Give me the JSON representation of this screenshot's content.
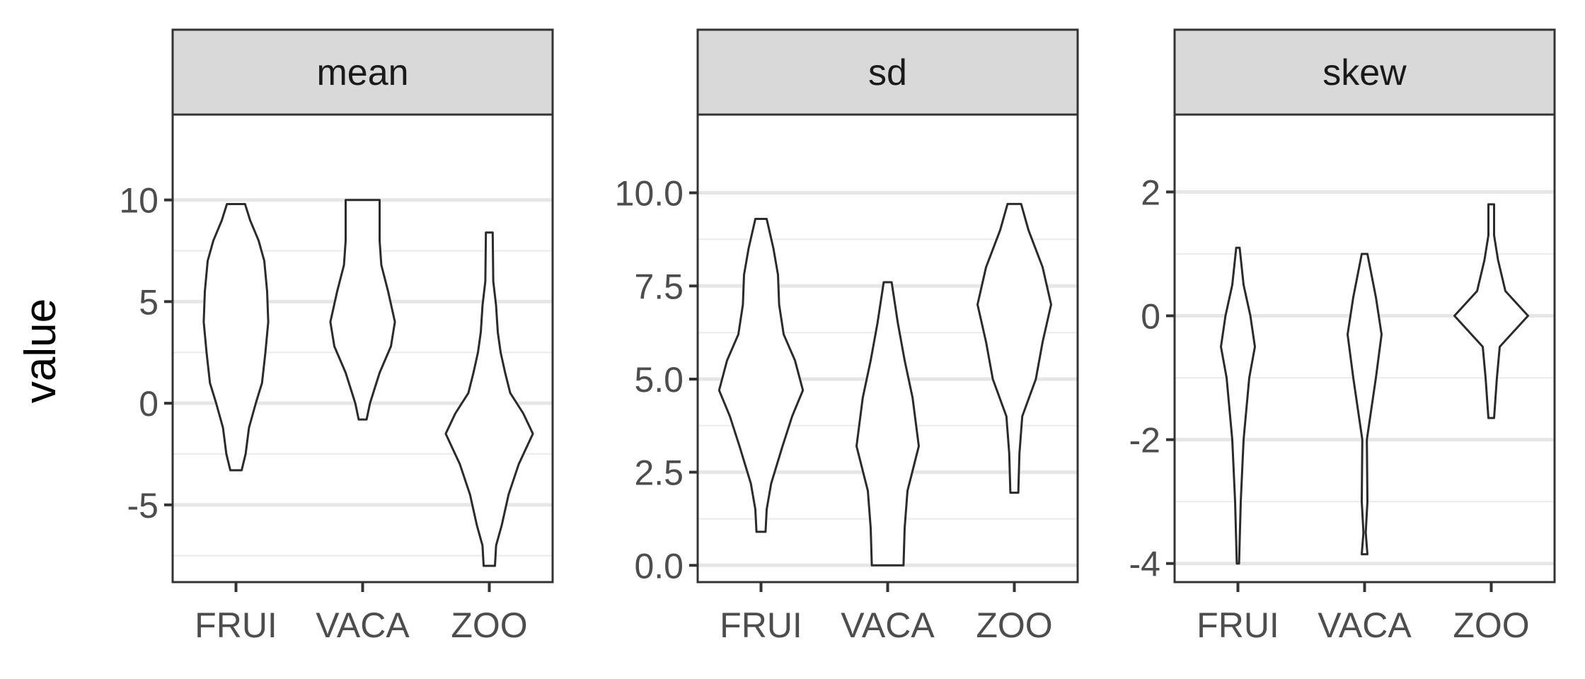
{
  "chart_data": {
    "type": "violin",
    "ylabel": "value",
    "categories": [
      "FRUI",
      "VACA",
      "ZOO"
    ],
    "facets": [
      {
        "name": "mean",
        "ylim": [
          -8.8,
          14.2
        ],
        "yticks": [
          -5,
          0,
          5,
          10
        ],
        "ytick_labels": [
          "-5",
          "0",
          "5",
          "10"
        ],
        "minor_yticks": [
          -7.5,
          -2.5,
          2.5,
          7.5
        ],
        "violins": [
          {
            "category": "FRUI",
            "profile": [
              [
                -3.3,
                0.1
              ],
              [
                -2.5,
                0.17
              ],
              [
                -1.2,
                0.23
              ],
              [
                0.0,
                0.35
              ],
              [
                1.0,
                0.46
              ],
              [
                2.5,
                0.52
              ],
              [
                4.0,
                0.57
              ],
              [
                5.5,
                0.55
              ],
              [
                7.0,
                0.5
              ],
              [
                8.0,
                0.4
              ],
              [
                9.0,
                0.25
              ],
              [
                9.8,
                0.16
              ]
            ]
          },
          {
            "category": "VACA",
            "profile": [
              [
                -0.8,
                0.07
              ],
              [
                0.0,
                0.13
              ],
              [
                1.5,
                0.3
              ],
              [
                2.8,
                0.5
              ],
              [
                4.0,
                0.57
              ],
              [
                5.5,
                0.45
              ],
              [
                6.8,
                0.33
              ],
              [
                8.0,
                0.3
              ],
              [
                9.0,
                0.3
              ],
              [
                10.0,
                0.3
              ]
            ]
          },
          {
            "category": "ZOO",
            "profile": [
              [
                -8.0,
                0.1
              ],
              [
                -7.0,
                0.12
              ],
              [
                -6.0,
                0.22
              ],
              [
                -4.5,
                0.34
              ],
              [
                -3.0,
                0.52
              ],
              [
                -1.5,
                0.77
              ],
              [
                -0.5,
                0.6
              ],
              [
                0.5,
                0.37
              ],
              [
                1.5,
                0.28
              ],
              [
                2.5,
                0.2
              ],
              [
                3.5,
                0.15
              ],
              [
                4.8,
                0.12
              ],
              [
                6.0,
                0.07
              ],
              [
                8.4,
                0.06
              ]
            ]
          }
        ]
      },
      {
        "name": "sd",
        "ylim": [
          -0.45,
          12.1
        ],
        "yticks": [
          0,
          2.5,
          5,
          7.5,
          10
        ],
        "ytick_labels": [
          "0.0",
          "2.5",
          "5.0",
          "7.5",
          "10.0"
        ],
        "minor_yticks": [
          1.25,
          3.75,
          6.25,
          8.75
        ],
        "violins": [
          {
            "category": "FRUI",
            "profile": [
              [
                0.9,
                0.08
              ],
              [
                1.5,
                0.1
              ],
              [
                2.2,
                0.18
              ],
              [
                3.2,
                0.38
              ],
              [
                4.0,
                0.55
              ],
              [
                4.7,
                0.74
              ],
              [
                5.5,
                0.6
              ],
              [
                6.2,
                0.4
              ],
              [
                7.0,
                0.32
              ],
              [
                7.8,
                0.3
              ],
              [
                8.5,
                0.22
              ],
              [
                9.3,
                0.1
              ]
            ]
          },
          {
            "category": "VACA",
            "profile": [
              [
                0.0,
                0.28
              ],
              [
                1.0,
                0.3
              ],
              [
                2.0,
                0.35
              ],
              [
                3.2,
                0.55
              ],
              [
                4.5,
                0.44
              ],
              [
                5.5,
                0.3
              ],
              [
                6.5,
                0.18
              ],
              [
                7.6,
                0.07
              ]
            ]
          },
          {
            "category": "ZOO",
            "profile": [
              [
                1.95,
                0.07
              ],
              [
                3.0,
                0.09
              ],
              [
                4.0,
                0.14
              ],
              [
                5.0,
                0.38
              ],
              [
                6.0,
                0.5
              ],
              [
                7.0,
                0.65
              ],
              [
                8.0,
                0.5
              ],
              [
                9.0,
                0.25
              ],
              [
                9.7,
                0.12
              ]
            ]
          }
        ]
      },
      {
        "name": "skew",
        "ylim": [
          -4.3,
          3.25
        ],
        "yticks": [
          -4,
          -2,
          0,
          2
        ],
        "ytick_labels": [
          "-4",
          "-2",
          "0",
          "2"
        ],
        "minor_yticks": [
          -3,
          -1,
          1
        ],
        "violins": [
          {
            "category": "FRUI",
            "profile": [
              [
                -4.0,
                0.02
              ],
              [
                -3.0,
                0.05
              ],
              [
                -2.0,
                0.1
              ],
              [
                -1.0,
                0.2
              ],
              [
                -0.5,
                0.3
              ],
              [
                0.0,
                0.22
              ],
              [
                0.5,
                0.1
              ],
              [
                1.1,
                0.03
              ]
            ]
          },
          {
            "category": "VACA",
            "profile": [
              [
                -3.85,
                0.05
              ],
              [
                -3.5,
                0.02
              ],
              [
                -3.0,
                0.05
              ],
              [
                -2.0,
                0.04
              ],
              [
                -1.0,
                0.2
              ],
              [
                -0.3,
                0.3
              ],
              [
                0.3,
                0.2
              ],
              [
                1.0,
                0.05
              ]
            ]
          },
          {
            "category": "ZOO",
            "profile": [
              [
                -1.65,
                0.05
              ],
              [
                -1.0,
                0.1
              ],
              [
                -0.5,
                0.15
              ],
              [
                0.0,
                0.65
              ],
              [
                0.4,
                0.25
              ],
              [
                0.9,
                0.12
              ],
              [
                1.3,
                0.05
              ],
              [
                1.8,
                0.05
              ]
            ]
          }
        ]
      }
    ]
  }
}
